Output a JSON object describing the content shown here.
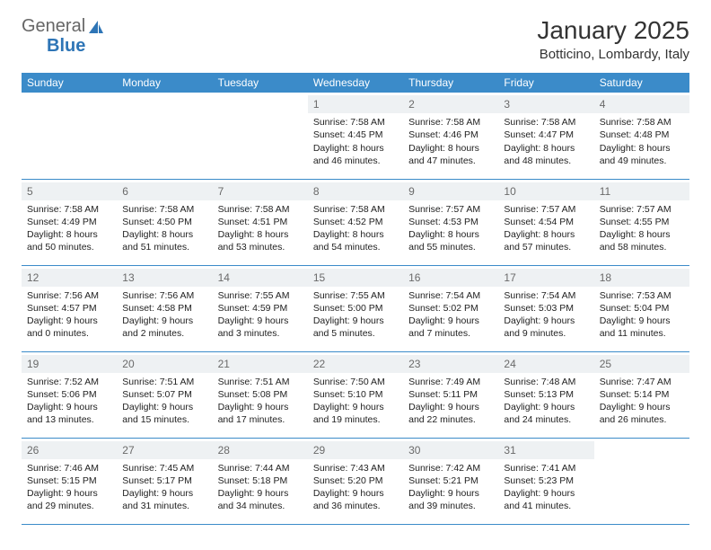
{
  "logo": {
    "text1": "General",
    "text2": "Blue"
  },
  "title": "January 2025",
  "location": "Botticino, Lombardy, Italy",
  "headers": [
    "Sunday",
    "Monday",
    "Tuesday",
    "Wednesday",
    "Thursday",
    "Friday",
    "Saturday"
  ],
  "colors": {
    "header_bg": "#3b8bc9",
    "header_fg": "#ffffff",
    "daynum_bg": "#eef1f3",
    "daynum_fg": "#6a6a6a",
    "border": "#3b8bc9",
    "logo_blue": "#2e75b6"
  },
  "weeks": [
    [
      null,
      null,
      null,
      {
        "n": "1",
        "sunrise": "7:58 AM",
        "sunset": "4:45 PM",
        "dl": "8 hours and 46 minutes."
      },
      {
        "n": "2",
        "sunrise": "7:58 AM",
        "sunset": "4:46 PM",
        "dl": "8 hours and 47 minutes."
      },
      {
        "n": "3",
        "sunrise": "7:58 AM",
        "sunset": "4:47 PM",
        "dl": "8 hours and 48 minutes."
      },
      {
        "n": "4",
        "sunrise": "7:58 AM",
        "sunset": "4:48 PM",
        "dl": "8 hours and 49 minutes."
      }
    ],
    [
      {
        "n": "5",
        "sunrise": "7:58 AM",
        "sunset": "4:49 PM",
        "dl": "8 hours and 50 minutes."
      },
      {
        "n": "6",
        "sunrise": "7:58 AM",
        "sunset": "4:50 PM",
        "dl": "8 hours and 51 minutes."
      },
      {
        "n": "7",
        "sunrise": "7:58 AM",
        "sunset": "4:51 PM",
        "dl": "8 hours and 53 minutes."
      },
      {
        "n": "8",
        "sunrise": "7:58 AM",
        "sunset": "4:52 PM",
        "dl": "8 hours and 54 minutes."
      },
      {
        "n": "9",
        "sunrise": "7:57 AM",
        "sunset": "4:53 PM",
        "dl": "8 hours and 55 minutes."
      },
      {
        "n": "10",
        "sunrise": "7:57 AM",
        "sunset": "4:54 PM",
        "dl": "8 hours and 57 minutes."
      },
      {
        "n": "11",
        "sunrise": "7:57 AM",
        "sunset": "4:55 PM",
        "dl": "8 hours and 58 minutes."
      }
    ],
    [
      {
        "n": "12",
        "sunrise": "7:56 AM",
        "sunset": "4:57 PM",
        "dl": "9 hours and 0 minutes."
      },
      {
        "n": "13",
        "sunrise": "7:56 AM",
        "sunset": "4:58 PM",
        "dl": "9 hours and 2 minutes."
      },
      {
        "n": "14",
        "sunrise": "7:55 AM",
        "sunset": "4:59 PM",
        "dl": "9 hours and 3 minutes."
      },
      {
        "n": "15",
        "sunrise": "7:55 AM",
        "sunset": "5:00 PM",
        "dl": "9 hours and 5 minutes."
      },
      {
        "n": "16",
        "sunrise": "7:54 AM",
        "sunset": "5:02 PM",
        "dl": "9 hours and 7 minutes."
      },
      {
        "n": "17",
        "sunrise": "7:54 AM",
        "sunset": "5:03 PM",
        "dl": "9 hours and 9 minutes."
      },
      {
        "n": "18",
        "sunrise": "7:53 AM",
        "sunset": "5:04 PM",
        "dl": "9 hours and 11 minutes."
      }
    ],
    [
      {
        "n": "19",
        "sunrise": "7:52 AM",
        "sunset": "5:06 PM",
        "dl": "9 hours and 13 minutes."
      },
      {
        "n": "20",
        "sunrise": "7:51 AM",
        "sunset": "5:07 PM",
        "dl": "9 hours and 15 minutes."
      },
      {
        "n": "21",
        "sunrise": "7:51 AM",
        "sunset": "5:08 PM",
        "dl": "9 hours and 17 minutes."
      },
      {
        "n": "22",
        "sunrise": "7:50 AM",
        "sunset": "5:10 PM",
        "dl": "9 hours and 19 minutes."
      },
      {
        "n": "23",
        "sunrise": "7:49 AM",
        "sunset": "5:11 PM",
        "dl": "9 hours and 22 minutes."
      },
      {
        "n": "24",
        "sunrise": "7:48 AM",
        "sunset": "5:13 PM",
        "dl": "9 hours and 24 minutes."
      },
      {
        "n": "25",
        "sunrise": "7:47 AM",
        "sunset": "5:14 PM",
        "dl": "9 hours and 26 minutes."
      }
    ],
    [
      {
        "n": "26",
        "sunrise": "7:46 AM",
        "sunset": "5:15 PM",
        "dl": "9 hours and 29 minutes."
      },
      {
        "n": "27",
        "sunrise": "7:45 AM",
        "sunset": "5:17 PM",
        "dl": "9 hours and 31 minutes."
      },
      {
        "n": "28",
        "sunrise": "7:44 AM",
        "sunset": "5:18 PM",
        "dl": "9 hours and 34 minutes."
      },
      {
        "n": "29",
        "sunrise": "7:43 AM",
        "sunset": "5:20 PM",
        "dl": "9 hours and 36 minutes."
      },
      {
        "n": "30",
        "sunrise": "7:42 AM",
        "sunset": "5:21 PM",
        "dl": "9 hours and 39 minutes."
      },
      {
        "n": "31",
        "sunrise": "7:41 AM",
        "sunset": "5:23 PM",
        "dl": "9 hours and 41 minutes."
      },
      null
    ]
  ],
  "labels": {
    "sunrise": "Sunrise:",
    "sunset": "Sunset:",
    "daylight": "Daylight:"
  }
}
